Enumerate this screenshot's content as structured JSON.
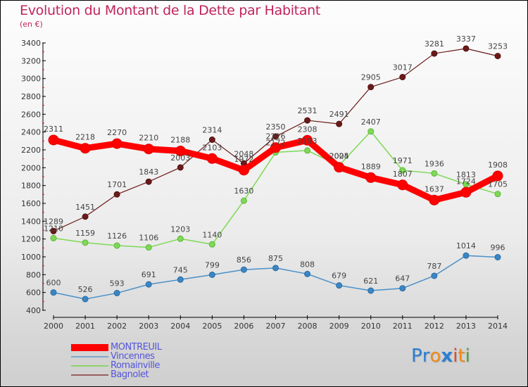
{
  "header": {
    "title": "Evolution du Montant de la Dette par Habitant",
    "subtitle": "(en €)"
  },
  "logo": {
    "letters": [
      {
        "char": "P",
        "color": "#2a7fd4"
      },
      {
        "char": "r",
        "color": "#2a7fd4"
      },
      {
        "char": "o",
        "color": "#f08a1c"
      },
      {
        "char": "x",
        "color": "#2a7fd4"
      },
      {
        "char": "i",
        "color": "#e8462a"
      },
      {
        "char": "t",
        "color": "#f08a1c"
      },
      {
        "char": "i",
        "color": "#4aa83a"
      }
    ]
  },
  "chart_data": {
    "type": "line",
    "title": "Evolution du Montant de la Dette par Habitant",
    "subtitle": "(en €)",
    "xlabel": "",
    "ylabel": "",
    "ylim": [
      400,
      3400
    ],
    "yticks": [
      400,
      600,
      800,
      1000,
      1200,
      1400,
      1600,
      1800,
      2000,
      2200,
      2400,
      2600,
      2800,
      3000,
      3200,
      3400
    ],
    "x": [
      "2000",
      "2001",
      "2002",
      "2003",
      "2004",
      "2005",
      "2006",
      "2007",
      "2008",
      "2009",
      "2010",
      "2011",
      "2012",
      "2013",
      "2014"
    ],
    "grid": false,
    "legend_position": "bottom-left",
    "series": [
      {
        "name": "Vincennes",
        "color": "#4a90c8",
        "values": [
          600,
          526,
          593,
          691,
          745,
          799,
          856,
          875,
          808,
          679,
          621,
          647,
          787,
          1014,
          996
        ]
      },
      {
        "name": "Romainville",
        "color": "#7ed957",
        "values": [
          1210,
          1159,
          1126,
          1106,
          1203,
          1140,
          1630,
          2172,
          2193,
          2024,
          2407,
          1971,
          1936,
          1813,
          1705
        ]
      },
      {
        "name": "Bagnolet",
        "color": "#6b1a1a",
        "values": [
          1289,
          1451,
          1701,
          1843,
          2003,
          2314,
          2048,
          2350,
          2531,
          2491,
          2905,
          3017,
          3281,
          3337,
          3253
        ]
      },
      {
        "name": "MONTREUIL",
        "color": "#ff0000",
        "values": [
          2311,
          2218,
          2270,
          2210,
          2188,
          2103,
          1972,
          2226,
          2308,
          2005,
          1889,
          1807,
          1637,
          1724,
          1908
        ]
      }
    ]
  },
  "legend": [
    {
      "name": "MONTREUIL",
      "color": "#ff0000"
    },
    {
      "name": "Vincennes",
      "color": "#7fa8c8"
    },
    {
      "name": "Romainville",
      "color": "#8ed36a"
    },
    {
      "name": "Bagnolet",
      "color": "#9a6060"
    }
  ]
}
